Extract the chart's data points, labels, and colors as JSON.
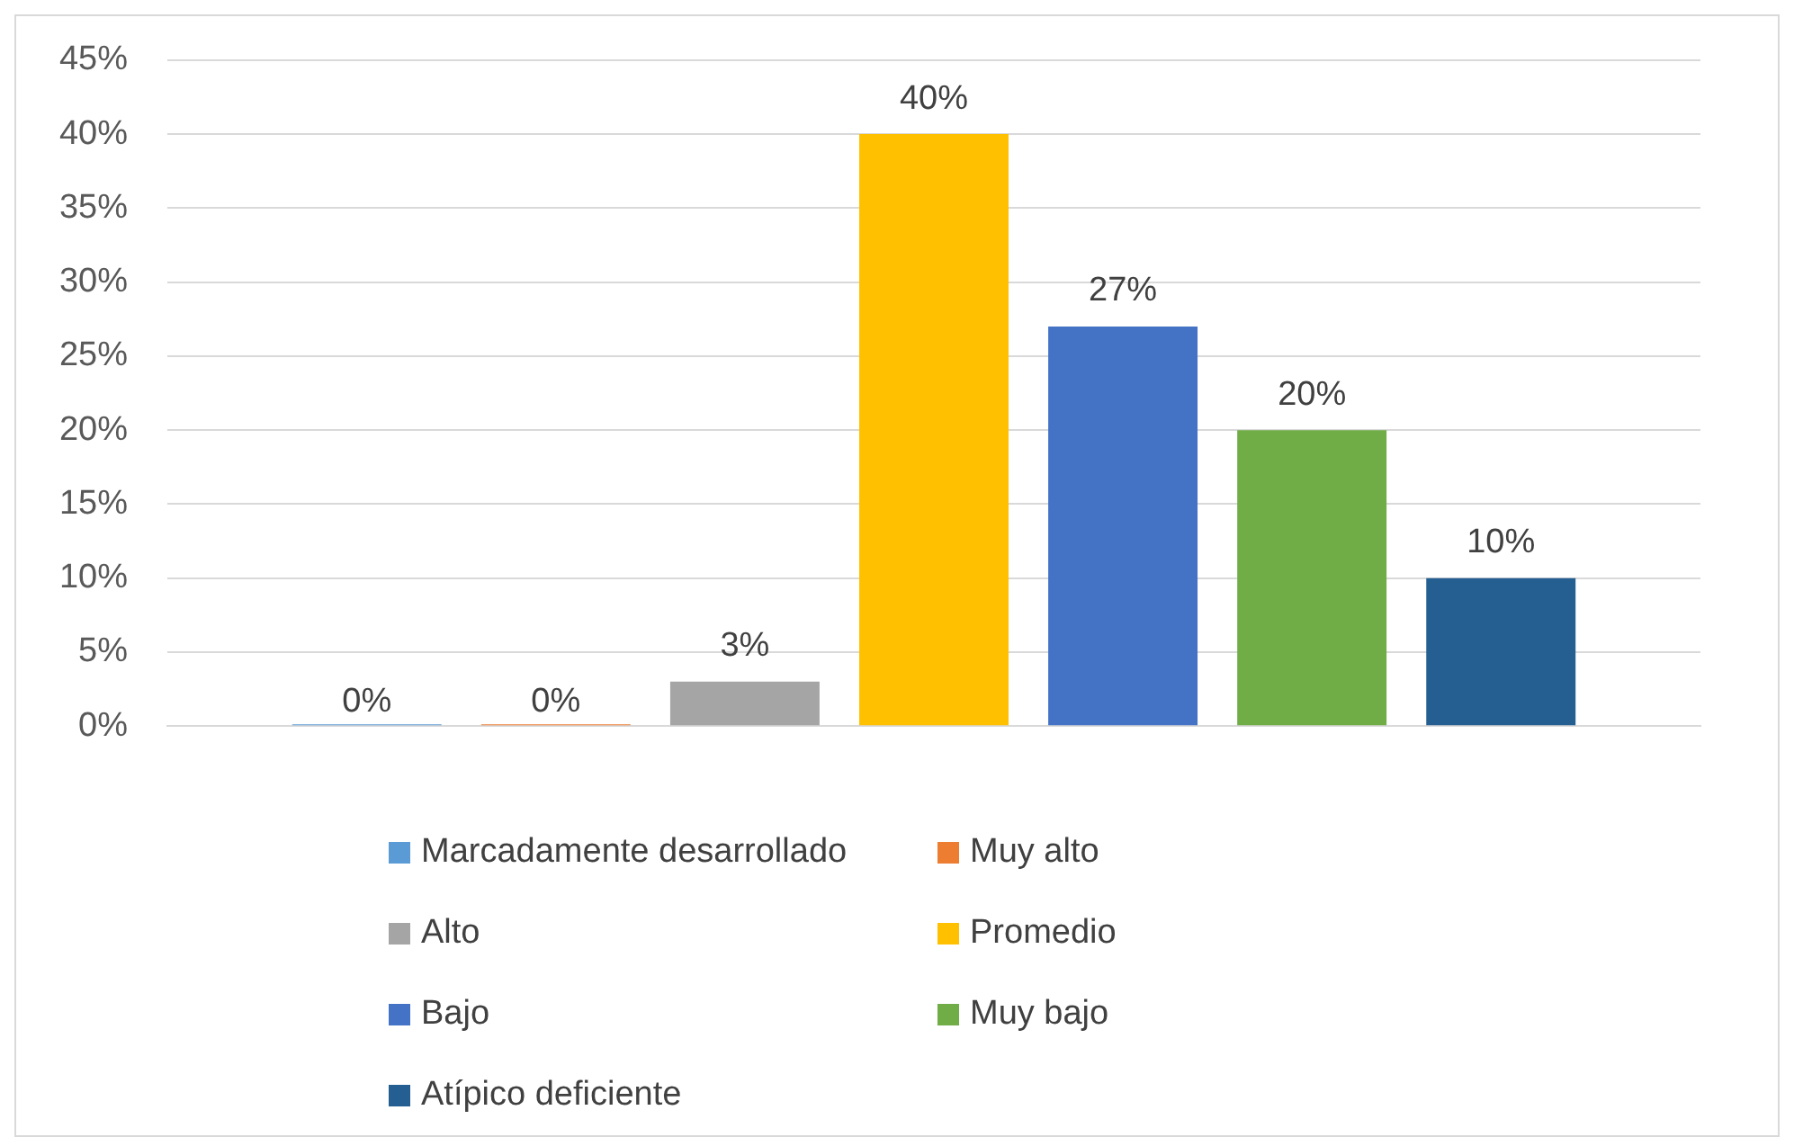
{
  "chart_data": {
    "type": "bar",
    "categories": [
      null
    ],
    "series": [
      {
        "name": "Marcadamente desarrollado",
        "color": "#5b9bd5",
        "values": [
          0
        ],
        "value_labels": [
          "0%"
        ]
      },
      {
        "name": "Muy alto",
        "color": "#ed7d31",
        "values": [
          0
        ],
        "value_labels": [
          "0%"
        ]
      },
      {
        "name": "Alto",
        "color": "#a5a5a5",
        "values": [
          3
        ],
        "value_labels": [
          "3%"
        ]
      },
      {
        "name": "Promedio",
        "color": "#ffc000",
        "values": [
          40
        ],
        "value_labels": [
          "40%"
        ]
      },
      {
        "name": "Bajo",
        "color": "#4472c4",
        "values": [
          27
        ],
        "value_labels": [
          "27%"
        ]
      },
      {
        "name": "Muy bajo",
        "color": "#70ad47",
        "values": [
          20
        ],
        "value_labels": [
          "20%"
        ]
      },
      {
        "name": "Atípico deficiente",
        "color": "#255e91",
        "values": [
          10
        ],
        "value_labels": [
          "10%"
        ]
      }
    ],
    "ylim": [
      0,
      45
    ],
    "yticks": [
      {
        "value": 0,
        "label": "0%"
      },
      {
        "value": 5,
        "label": "5%"
      },
      {
        "value": 10,
        "label": "10%"
      },
      {
        "value": 15,
        "label": "15%"
      },
      {
        "value": 20,
        "label": "20%"
      },
      {
        "value": 25,
        "label": "25%"
      },
      {
        "value": 30,
        "label": "30%"
      },
      {
        "value": 35,
        "label": "35%"
      },
      {
        "value": 40,
        "label": "40%"
      },
      {
        "value": 45,
        "label": "45%"
      }
    ],
    "grid": "y",
    "legend": "bottom"
  }
}
